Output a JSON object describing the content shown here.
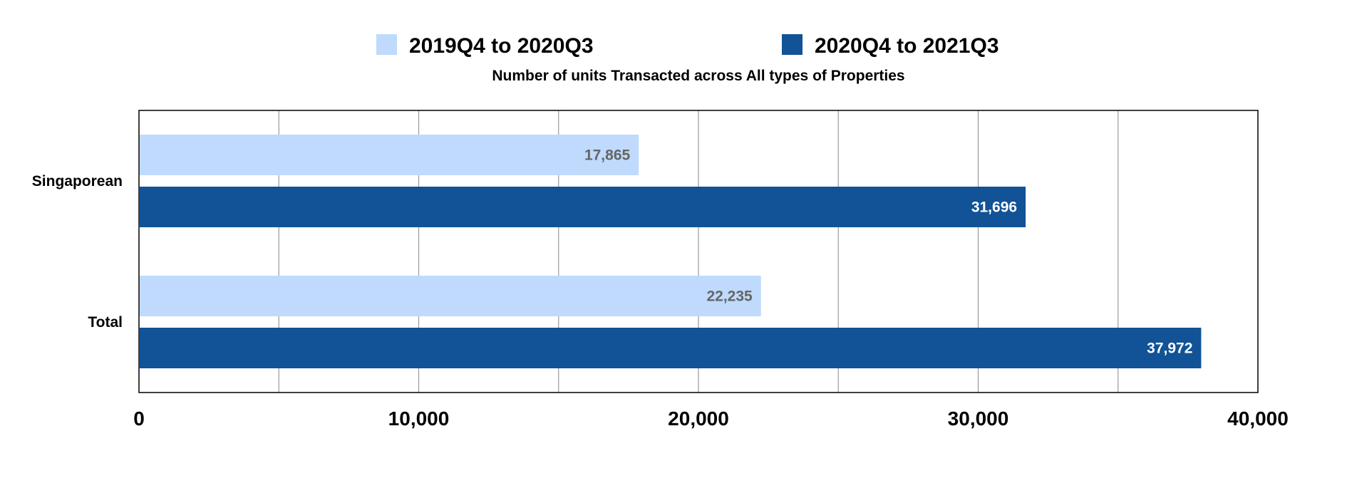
{
  "chart_data": {
    "type": "bar",
    "orientation": "horizontal",
    "title": "Number of units Transacted across All types of Properties",
    "categories": [
      "Singaporean",
      "Total"
    ],
    "series": [
      {
        "name": "2019Q4 to 2020Q3",
        "values": [
          17865,
          22235
        ],
        "labels": [
          "17,865",
          "22,235"
        ],
        "color": "#bfdafc",
        "label_color": "#666666"
      },
      {
        "name": "2020Q4 to 2021Q3",
        "values": [
          31696,
          37972
        ],
        "labels": [
          "31,696",
          "37,972"
        ],
        "color": "#115396",
        "label_color": "#ffffff"
      }
    ],
    "xlim": [
      0,
      40000
    ],
    "x_ticks": [
      0,
      10000,
      20000,
      30000,
      40000
    ],
    "x_tick_labels": [
      "0",
      "10,000",
      "20,000",
      "30,000",
      "40,000"
    ],
    "minor_gridlines": true,
    "legend_position": "top"
  }
}
